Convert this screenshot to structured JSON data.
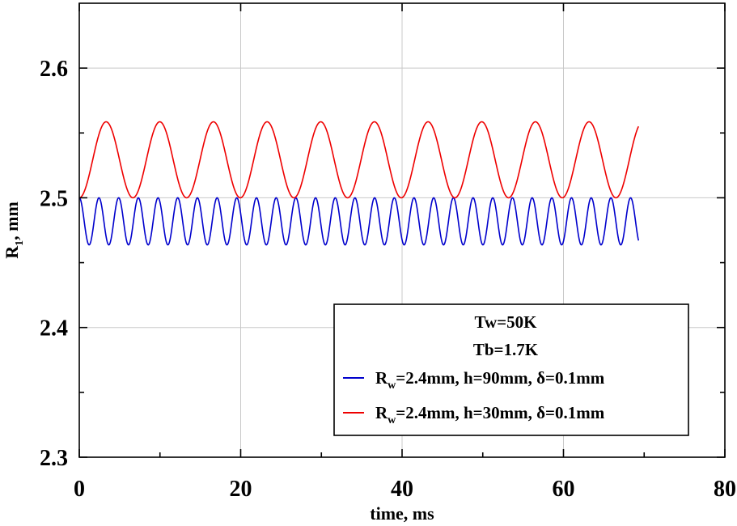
{
  "chart_data": {
    "type": "line",
    "xlabel": "time, ms",
    "ylabel": "R",
    "ylabel_sub": "1",
    "ylabel_unit": ", mm",
    "xlim": [
      0,
      80
    ],
    "ylim": [
      2.3,
      2.65
    ],
    "x_ticks": [
      0,
      20,
      40,
      60,
      80
    ],
    "x_tick_labels": [
      "0",
      "20",
      "40",
      "60",
      "80"
    ],
    "y_ticks": [
      2.3,
      2.4,
      2.5,
      2.6
    ],
    "y_tick_labels": [
      "2.3",
      "2.4",
      "2.5",
      "2.6"
    ],
    "grid": true,
    "legend_position": "bottom-right",
    "legend_title_lines": [
      "Tw=50K",
      "Tb=1.7K"
    ],
    "series": [
      {
        "name_prefix": "R",
        "name_sub": "w",
        "name_suffix": "=2.4mm, h=90mm, δ=0.1mm",
        "color": "#0000cc",
        "wave": {
          "baseline": 2.5,
          "amplitude": 0.0363,
          "period_ms": 2.44,
          "direction": "down",
          "x_end": 69.3
        }
      },
      {
        "name_prefix": "R",
        "name_sub": "w",
        "name_suffix": "=2.4mm, h=30mm, δ=0.1mm",
        "color": "#ee0000",
        "wave": {
          "baseline": 2.5,
          "amplitude": 0.0586,
          "period_ms": 6.65,
          "direction": "up",
          "x_end": 69.3
        }
      }
    ]
  }
}
